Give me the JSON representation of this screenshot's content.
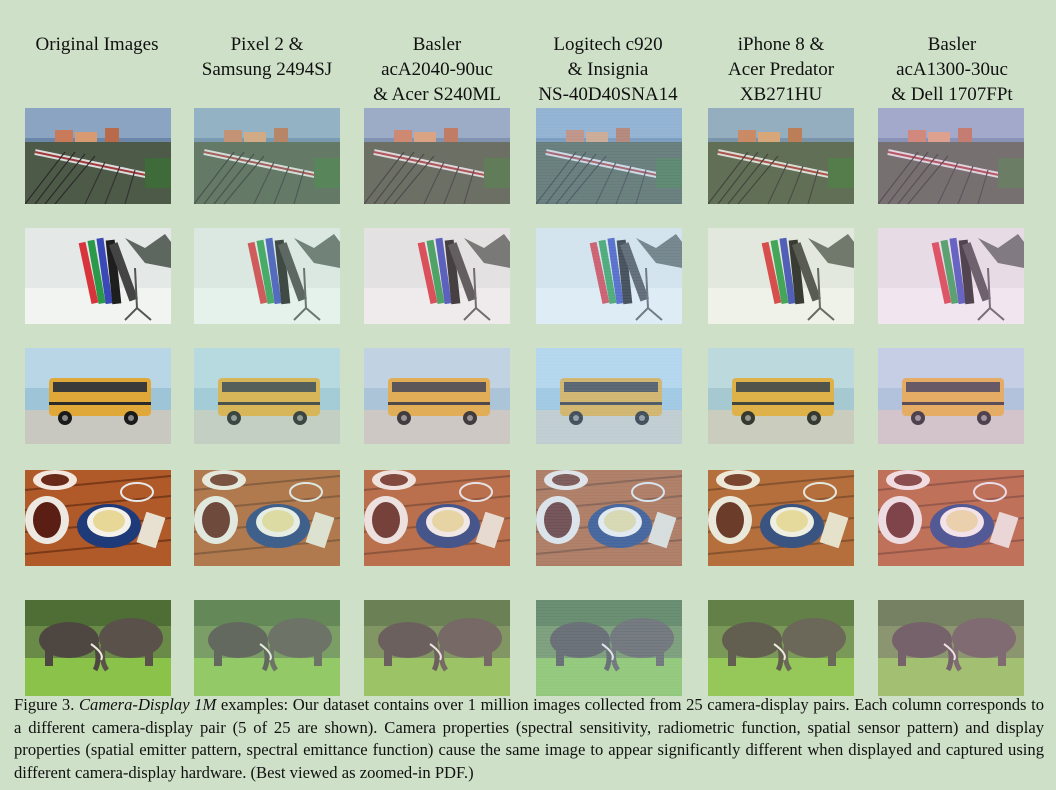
{
  "columns": [
    {
      "label": "Original Images"
    },
    {
      "label": "Pixel 2 &\nSamsung 2494SJ"
    },
    {
      "label": "Basler\nacA2040-90uc\n& Acer S240ML"
    },
    {
      "label": "Logitech c920\n& Insignia\nNS-40D40SNA14"
    },
    {
      "label": "iPhone 8 &\nAcer Predator\nXB271HU"
    },
    {
      "label": "Basler\nacA1300-30uc\n& Dell 1707FPt"
    }
  ],
  "rows": [
    {
      "subject": "train-yard"
    },
    {
      "subject": "snowboards"
    },
    {
      "subject": "school-bus"
    },
    {
      "subject": "coffee-cup"
    },
    {
      "subject": "elephants"
    }
  ],
  "caption": {
    "figure_label": "Figure 3.",
    "title": "Camera-Display 1M",
    "text": " examples: Our dataset contains over 1 million images collected from 25 camera-display pairs. Each column corresponds to a different camera-display pair (5 of 25 are shown). Camera properties (spectral sensitivity, radiometric function, spatial sensor pattern) and display properties (spatial emitter pattern, spectral emittance function) cause the same image to appear significantly different when displayed and captured using different camera-display hardware. (Best viewed as zoomed-in PDF.)"
  },
  "colors": {
    "background": "#cfe0c8",
    "column_tints": [
      "none",
      "#b8e8d0",
      "#e6c8d8",
      "#a8d8ff",
      "#d8e8b0",
      "#f0b8e8"
    ]
  }
}
